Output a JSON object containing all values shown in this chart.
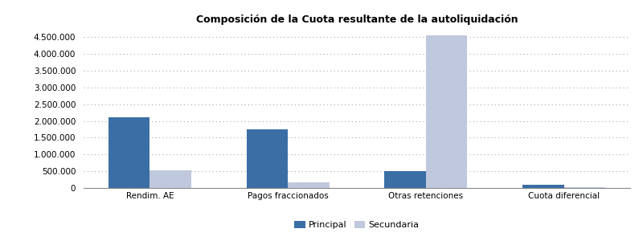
{
  "title": "Composición de la Cuota resultante de la autoliquidación",
  "categories": [
    "Rendim. AE",
    "Pagos fraccionados",
    "Otras retenciones",
    "Cuota diferencial"
  ],
  "principal": [
    2100000,
    1750000,
    500000,
    100000
  ],
  "secundaria": [
    530000,
    175000,
    4550000,
    20000
  ],
  "color_principal": "#3B6EA5",
  "color_secundaria": "#BFC8DC",
  "legend_labels": [
    "Principal",
    "Secundaria"
  ],
  "ylim": [
    0,
    4750000
  ],
  "yticks": [
    0,
    500000,
    1000000,
    1500000,
    2000000,
    2500000,
    3000000,
    3500000,
    4000000,
    4500000
  ],
  "bar_width": 0.3,
  "title_fontsize": 9,
  "tick_fontsize": 7.5,
  "legend_fontsize": 8,
  "bg_color": "#FFFFFF",
  "grid_color": "#AAAAAA",
  "figure_width": 8.0,
  "figure_height": 3.0
}
